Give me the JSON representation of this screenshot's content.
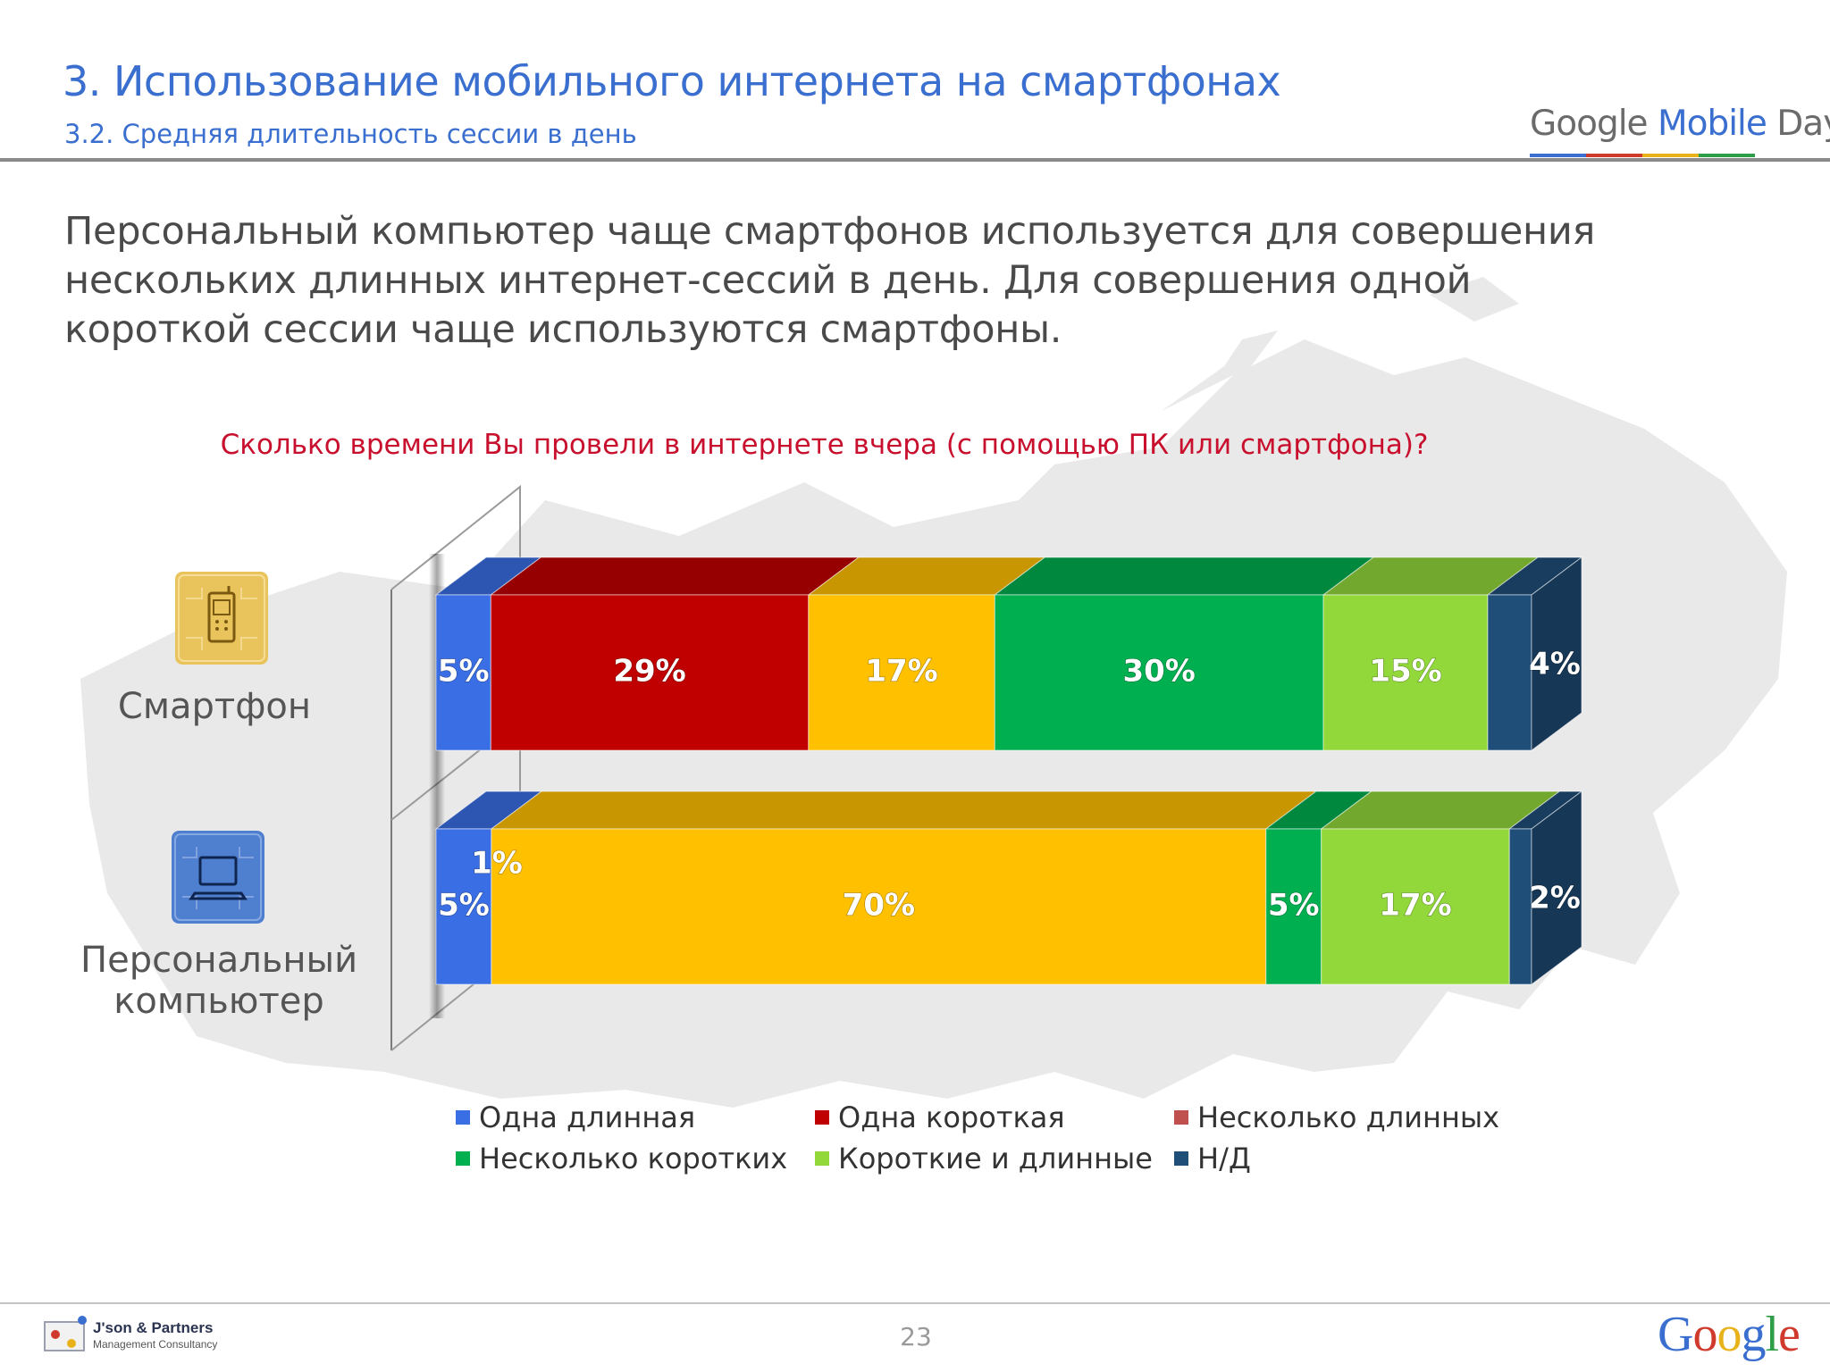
{
  "header": {
    "title": "3. Использование мобильного интернета на смартфонах",
    "subtitle": "3.2. Средняя длительность сессии в день",
    "brand_google": "Google",
    "brand_mobile": "Mobile",
    "brand_day": "Day"
  },
  "headline": "Персональный компьютер чаще смартфонов используется для совершения нескольких длинных интернет-сессий в день. Для совершения одной короткой сессии чаще используются смартфоны.",
  "question": "Сколько времени Вы провели в интернете вчера (с помощью ПК или смартфона)?",
  "categories_display": [
    {
      "label": "Смартфон",
      "icon": "smartphone-icon",
      "icon_color": "#E9C35B"
    },
    {
      "label": "Персональный компьютер",
      "icon": "computer-icon",
      "icon_color": "#4F7FCF"
    }
  ],
  "chart_data": {
    "type": "bar",
    "orientation": "horizontal",
    "stacked": true,
    "stacked_percent": true,
    "title": "Сколько времени Вы провели в интернете вчера (с помощью ПК или смартфона)?",
    "categories": [
      "Смартфон",
      "Персональный компьютер"
    ],
    "series": [
      {
        "name": "Одна длинная",
        "color": "#3A6EE5",
        "values": [
          5,
          5
        ],
        "labels": [
          "5%",
          "5%"
        ]
      },
      {
        "name": "Одна короткая",
        "color": "#C00000",
        "values": [
          29,
          0
        ],
        "labels": [
          "29%",
          ""
        ]
      },
      {
        "name": "Несколько длинных",
        "color": "#FFC000",
        "values": [
          17,
          70
        ],
        "labels": [
          "17%",
          "70%"
        ]
      },
      {
        "name": "Несколько коротких",
        "color": "#00B050",
        "values": [
          30,
          5
        ],
        "labels": [
          "30%",
          "5%"
        ]
      },
      {
        "name": "Короткие и длинные",
        "color": "#92D83A",
        "values": [
          15,
          17
        ],
        "labels": [
          "15%",
          "17%"
        ]
      },
      {
        "name": "Н/Д",
        "color": "#1F4E79",
        "values": [
          4,
          2
        ],
        "labels": [
          "4%",
          "2%"
        ]
      }
    ],
    "extra_label": {
      "text": "1%",
      "category": "Персональный компьютер"
    },
    "legend": {
      "position": "bottom",
      "items": [
        {
          "label": "Одна длинная",
          "color": "#3A6EE5"
        },
        {
          "label": "Одна короткая",
          "color": "#C00000"
        },
        {
          "label": "Несколько длинных",
          "color": "#C0504D"
        },
        {
          "label": "Несколько коротких",
          "color": "#00B050"
        },
        {
          "label": "Короткие и длинные",
          "color": "#92D83A"
        },
        {
          "label": "Н/Д",
          "color": "#1F4E79"
        }
      ]
    },
    "grid": false,
    "style": "3d"
  },
  "footer": {
    "company": "J'son & Partners",
    "company_sub": "Management Consultancy",
    "page_number": "23",
    "google": [
      "G",
      "o",
      "o",
      "g",
      "l",
      "e"
    ],
    "google_colors": [
      "#3A6FD0",
      "#D03A2C",
      "#E8B21A",
      "#3A6FD0",
      "#2E9E48",
      "#D03A2C"
    ]
  },
  "colors": {
    "accent": "#3A6FD0",
    "question": "#C8102E",
    "map": "#E6E6E6"
  }
}
